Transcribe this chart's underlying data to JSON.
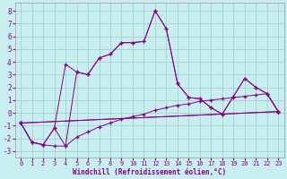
{
  "bg_color": "#c8eef0",
  "line_color": "#880088",
  "grid_color": "#99cccc",
  "xlim": [
    -0.5,
    23.5
  ],
  "ylim": [
    -3.5,
    8.6
  ],
  "xticks": [
    0,
    1,
    2,
    3,
    4,
    5,
    6,
    7,
    8,
    9,
    10,
    11,
    12,
    13,
    14,
    15,
    16,
    17,
    18,
    19,
    20,
    21,
    22,
    23
  ],
  "yticks": [
    -3,
    -2,
    -1,
    0,
    1,
    2,
    3,
    4,
    5,
    6,
    7,
    8
  ],
  "xlabel": "Windchill (Refroidissement éolien,°C)",
  "line1_x": [
    0,
    1,
    2,
    3,
    4,
    5,
    6,
    7,
    8,
    9,
    10,
    11,
    12,
    13,
    14,
    15,
    16,
    17,
    18,
    19,
    20,
    21,
    22,
    23
  ],
  "line1_y": [
    -0.8,
    -2.3,
    -2.5,
    -1.2,
    3.8,
    3.2,
    3.0,
    4.3,
    4.6,
    5.5,
    5.5,
    5.6,
    8.0,
    6.6,
    2.3,
    1.2,
    1.1,
    0.4,
    -0.1,
    1.3,
    2.7,
    2.0,
    1.5,
    0.1
  ],
  "line2_x": [
    0,
    1,
    2,
    3,
    4,
    5,
    6,
    7,
    8,
    9,
    10,
    11,
    12,
    13,
    14,
    15,
    16,
    17,
    18,
    19,
    20,
    21,
    22,
    23
  ],
  "line2_y": [
    -0.8,
    -2.3,
    -2.5,
    -1.2,
    -2.6,
    3.2,
    3.0,
    4.3,
    4.6,
    5.5,
    5.5,
    5.6,
    8.0,
    6.6,
    2.3,
    1.2,
    1.1,
    0.4,
    -0.1,
    1.3,
    2.7,
    2.0,
    1.5,
    0.1
  ],
  "line3_x": [
    0,
    1,
    2,
    3,
    4,
    5,
    6,
    7,
    8,
    9,
    10,
    11,
    12,
    13,
    14,
    15,
    16,
    17,
    18,
    19,
    20,
    21,
    22,
    23
  ],
  "line3_y": [
    -0.8,
    -2.3,
    -2.5,
    -2.6,
    -2.6,
    -1.9,
    -1.5,
    -1.1,
    -0.8,
    -0.5,
    -0.3,
    -0.1,
    0.2,
    0.4,
    0.6,
    0.7,
    0.9,
    1.0,
    1.1,
    1.2,
    1.3,
    1.4,
    1.5,
    0.1
  ],
  "line4_x": [
    0,
    23
  ],
  "line4_y": [
    -0.8,
    0.1
  ],
  "line5_x": [
    0,
    23
  ],
  "line5_y": [
    -0.8,
    0.1
  ]
}
